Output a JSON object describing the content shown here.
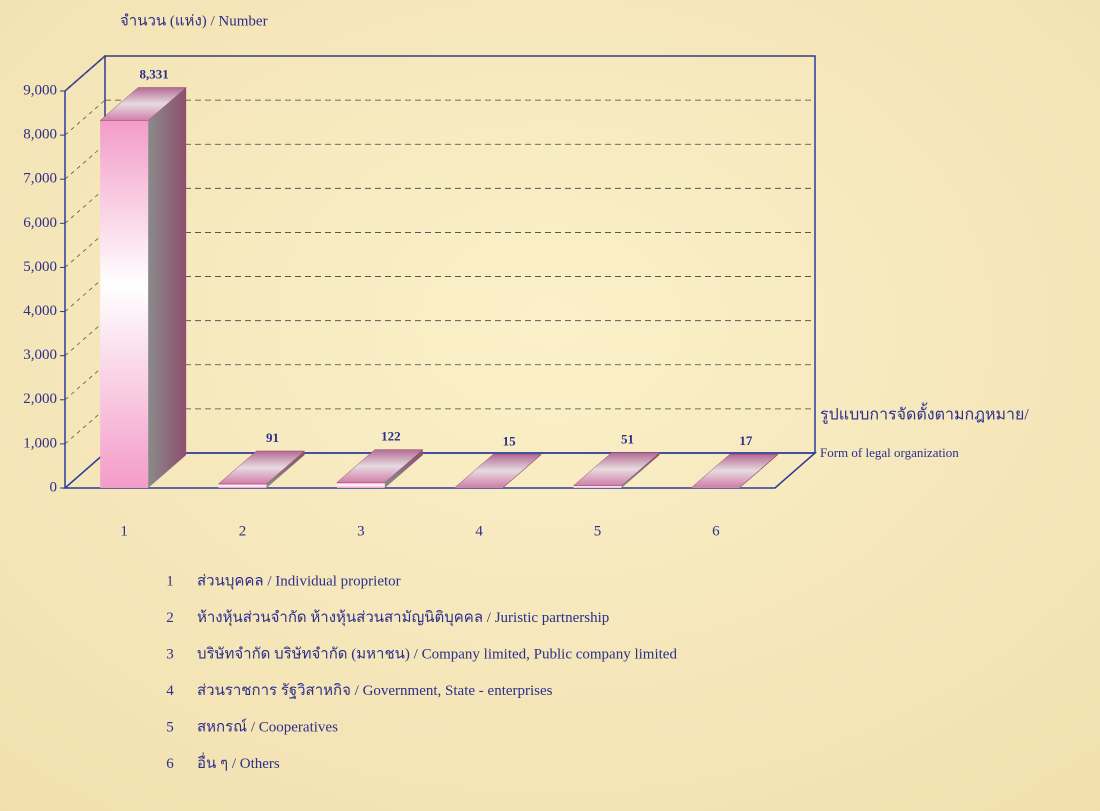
{
  "chart_data": {
    "type": "bar3d",
    "y_label": "จำนวน (แห่ง) / Number",
    "x_label": [
      "รูปแบบการจัดตั้งตามกฎหมาย/",
      "Form of  legal organization"
    ],
    "categories": [
      "1",
      "2",
      "3",
      "4",
      "5",
      "6"
    ],
    "values": [
      8331,
      91,
      122,
      15,
      51,
      17
    ],
    "value_labels": [
      "8,331",
      "91",
      "122",
      "15",
      "51",
      "17"
    ],
    "category_descriptions": [
      "ส่วนบุคคล / Individual proprietor",
      "ห้างหุ้นส่วนจำกัด ห้างหุ้นส่วนสามัญนิติบุคคล / Juristic partnership",
      "บริษัทจำกัด บริษัทจำกัด (มหาชน) / Company limited, Public company limited",
      "ส่วนราชการ รัฐวิสาหกิจ / Government, State - enterprises",
      "สหกรณ์ / Cooperatives",
      "อื่น ๆ / Others"
    ],
    "ylim": [
      0,
      9000
    ],
    "yticks": [
      0,
      {
        "value": 1000,
        "label": "1,000"
      },
      {
        "value": 2000,
        "label": "2,000"
      },
      {
        "value": 3000,
        "label": "3,000"
      },
      {
        "value": 4000,
        "label": "4,000"
      },
      {
        "value": 5000,
        "label": "5,000"
      },
      {
        "value": 6000,
        "label": "6,000"
      },
      {
        "value": 7000,
        "label": "7,000"
      },
      {
        "value": 8000,
        "label": "8,000"
      },
      {
        "value": 9000,
        "label": "9,000"
      }
    ],
    "grid": true,
    "color": "#f4a6cc"
  }
}
